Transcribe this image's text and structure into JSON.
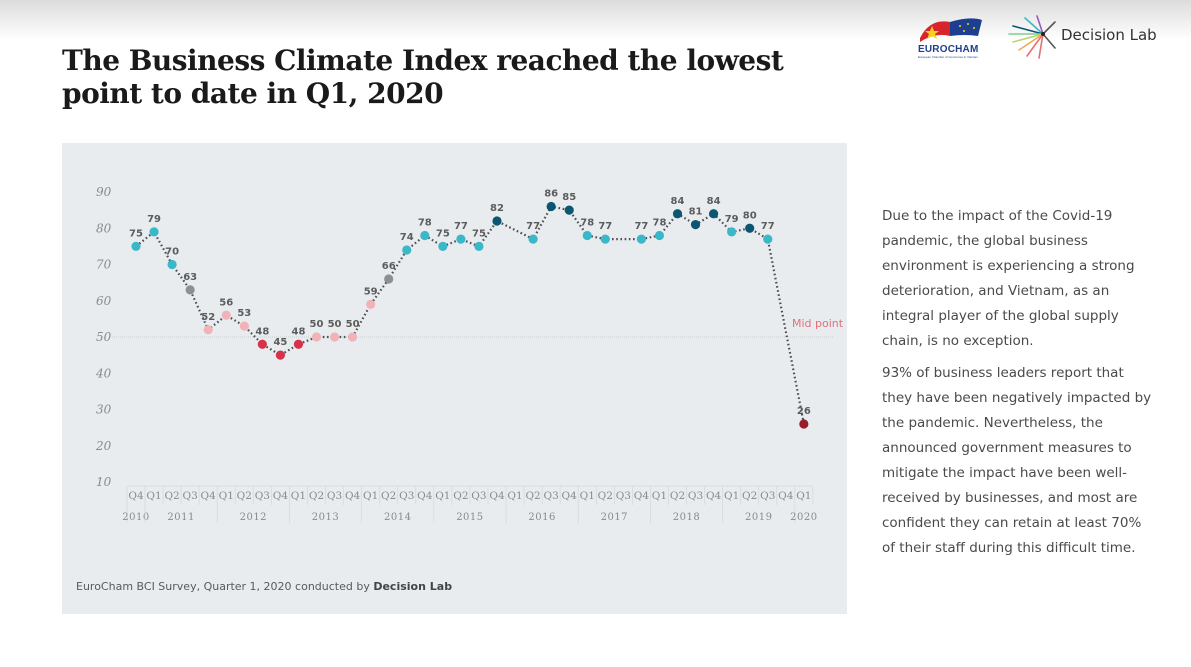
{
  "header": {
    "title_line1": "The Business Climate Index reached the lowest",
    "title_line2": "point to date in Q1, 2020",
    "logos": [
      {
        "name": "EUROCHAM",
        "subtitle": "European Chamber of Commerce in Vietnam"
      },
      {
        "name": "Decision Lab"
      }
    ]
  },
  "colors": {
    "panel_bg": "#e8ecef",
    "teal": "#3bb8c8",
    "dark_teal": "#0b5670",
    "grey": "#8d8f92",
    "pink": "#f0b3b8",
    "red": "#d8314a",
    "dark_red": "#9b1b2a",
    "midpoint_label": "#e0707a"
  },
  "chart_data": {
    "type": "line",
    "title": "Business Climate Index",
    "xlabel": "",
    "ylabel": "",
    "ylim": [
      10,
      90
    ],
    "yticks": [
      90,
      80,
      70,
      60,
      50,
      40,
      30,
      20,
      10
    ],
    "grid": false,
    "line_style": "dotted",
    "reference_line": {
      "value": 50,
      "label": "Mid point"
    },
    "quarters": [
      "Q4",
      "Q1",
      "Q2",
      "Q3",
      "Q4",
      "Q1",
      "Q2",
      "Q3",
      "Q4",
      "Q1",
      "Q2",
      "Q3",
      "Q4",
      "Q1",
      "Q2",
      "Q3",
      "Q4",
      "Q1",
      "Q2",
      "Q3",
      "Q4",
      "Q1",
      "Q2",
      "Q3",
      "Q4",
      "Q1",
      "Q2",
      "Q3",
      "Q4",
      "Q1",
      "Q2",
      "Q3",
      "Q4",
      "Q1",
      "Q2",
      "Q3",
      "Q4",
      "Q1"
    ],
    "years": [
      {
        "label": "2010",
        "start": 0,
        "count": 1
      },
      {
        "label": "2011",
        "start": 1,
        "count": 4
      },
      {
        "label": "2012",
        "start": 5,
        "count": 4
      },
      {
        "label": "2013",
        "start": 9,
        "count": 4
      },
      {
        "label": "2014",
        "start": 13,
        "count": 4
      },
      {
        "label": "2015",
        "start": 17,
        "count": 4
      },
      {
        "label": "2016",
        "start": 21,
        "count": 4
      },
      {
        "label": "2017",
        "start": 25,
        "count": 4
      },
      {
        "label": "2018",
        "start": 29,
        "count": 4
      },
      {
        "label": "2019",
        "start": 33,
        "count": 4
      },
      {
        "label": "2020",
        "start": 37,
        "count": 1
      }
    ],
    "series": [
      {
        "name": "BCI",
        "values": [
          75,
          79,
          70,
          63,
          52,
          56,
          53,
          48,
          45,
          48,
          50,
          50,
          50,
          59,
          66,
          74,
          78,
          75,
          77,
          75,
          82,
          null,
          77,
          86,
          85,
          78,
          77,
          null,
          77,
          78,
          84,
          81,
          84,
          79,
          80,
          77,
          null,
          26
        ],
        "point_colors": [
          "teal",
          "teal",
          "teal",
          "grey",
          "pink",
          "pink",
          "pink",
          "red",
          "red",
          "red",
          "pink",
          "pink",
          "pink",
          "pink",
          "grey",
          "teal",
          "teal",
          "teal",
          "teal",
          "teal",
          "dark_teal",
          null,
          "teal",
          "dark_teal",
          "dark_teal",
          "teal",
          "teal",
          null,
          "teal",
          "teal",
          "dark_teal",
          "dark_teal",
          "dark_teal",
          "teal",
          "dark_teal",
          "teal",
          null,
          "dark_red"
        ]
      }
    ]
  },
  "source": {
    "text": "EuroCham BCI Survey, Quarter 1, 2020 conducted by ",
    "bold": "Decision Lab"
  },
  "side_text": {
    "paragraph1": "Due to the impact of the Covid-19 pandemic, the global business environment is experiencing a strong deterioration, and Vietnam, as an integral player of the global supply chain, is no exception.",
    "paragraph2": "93% of business leaders report that they have been negatively impacted by the pandemic. Nevertheless, the announced government measures to mitigate the impact have been well-received by businesses, and most are confident they can retain at least 70% of their staff during this difficult time."
  }
}
